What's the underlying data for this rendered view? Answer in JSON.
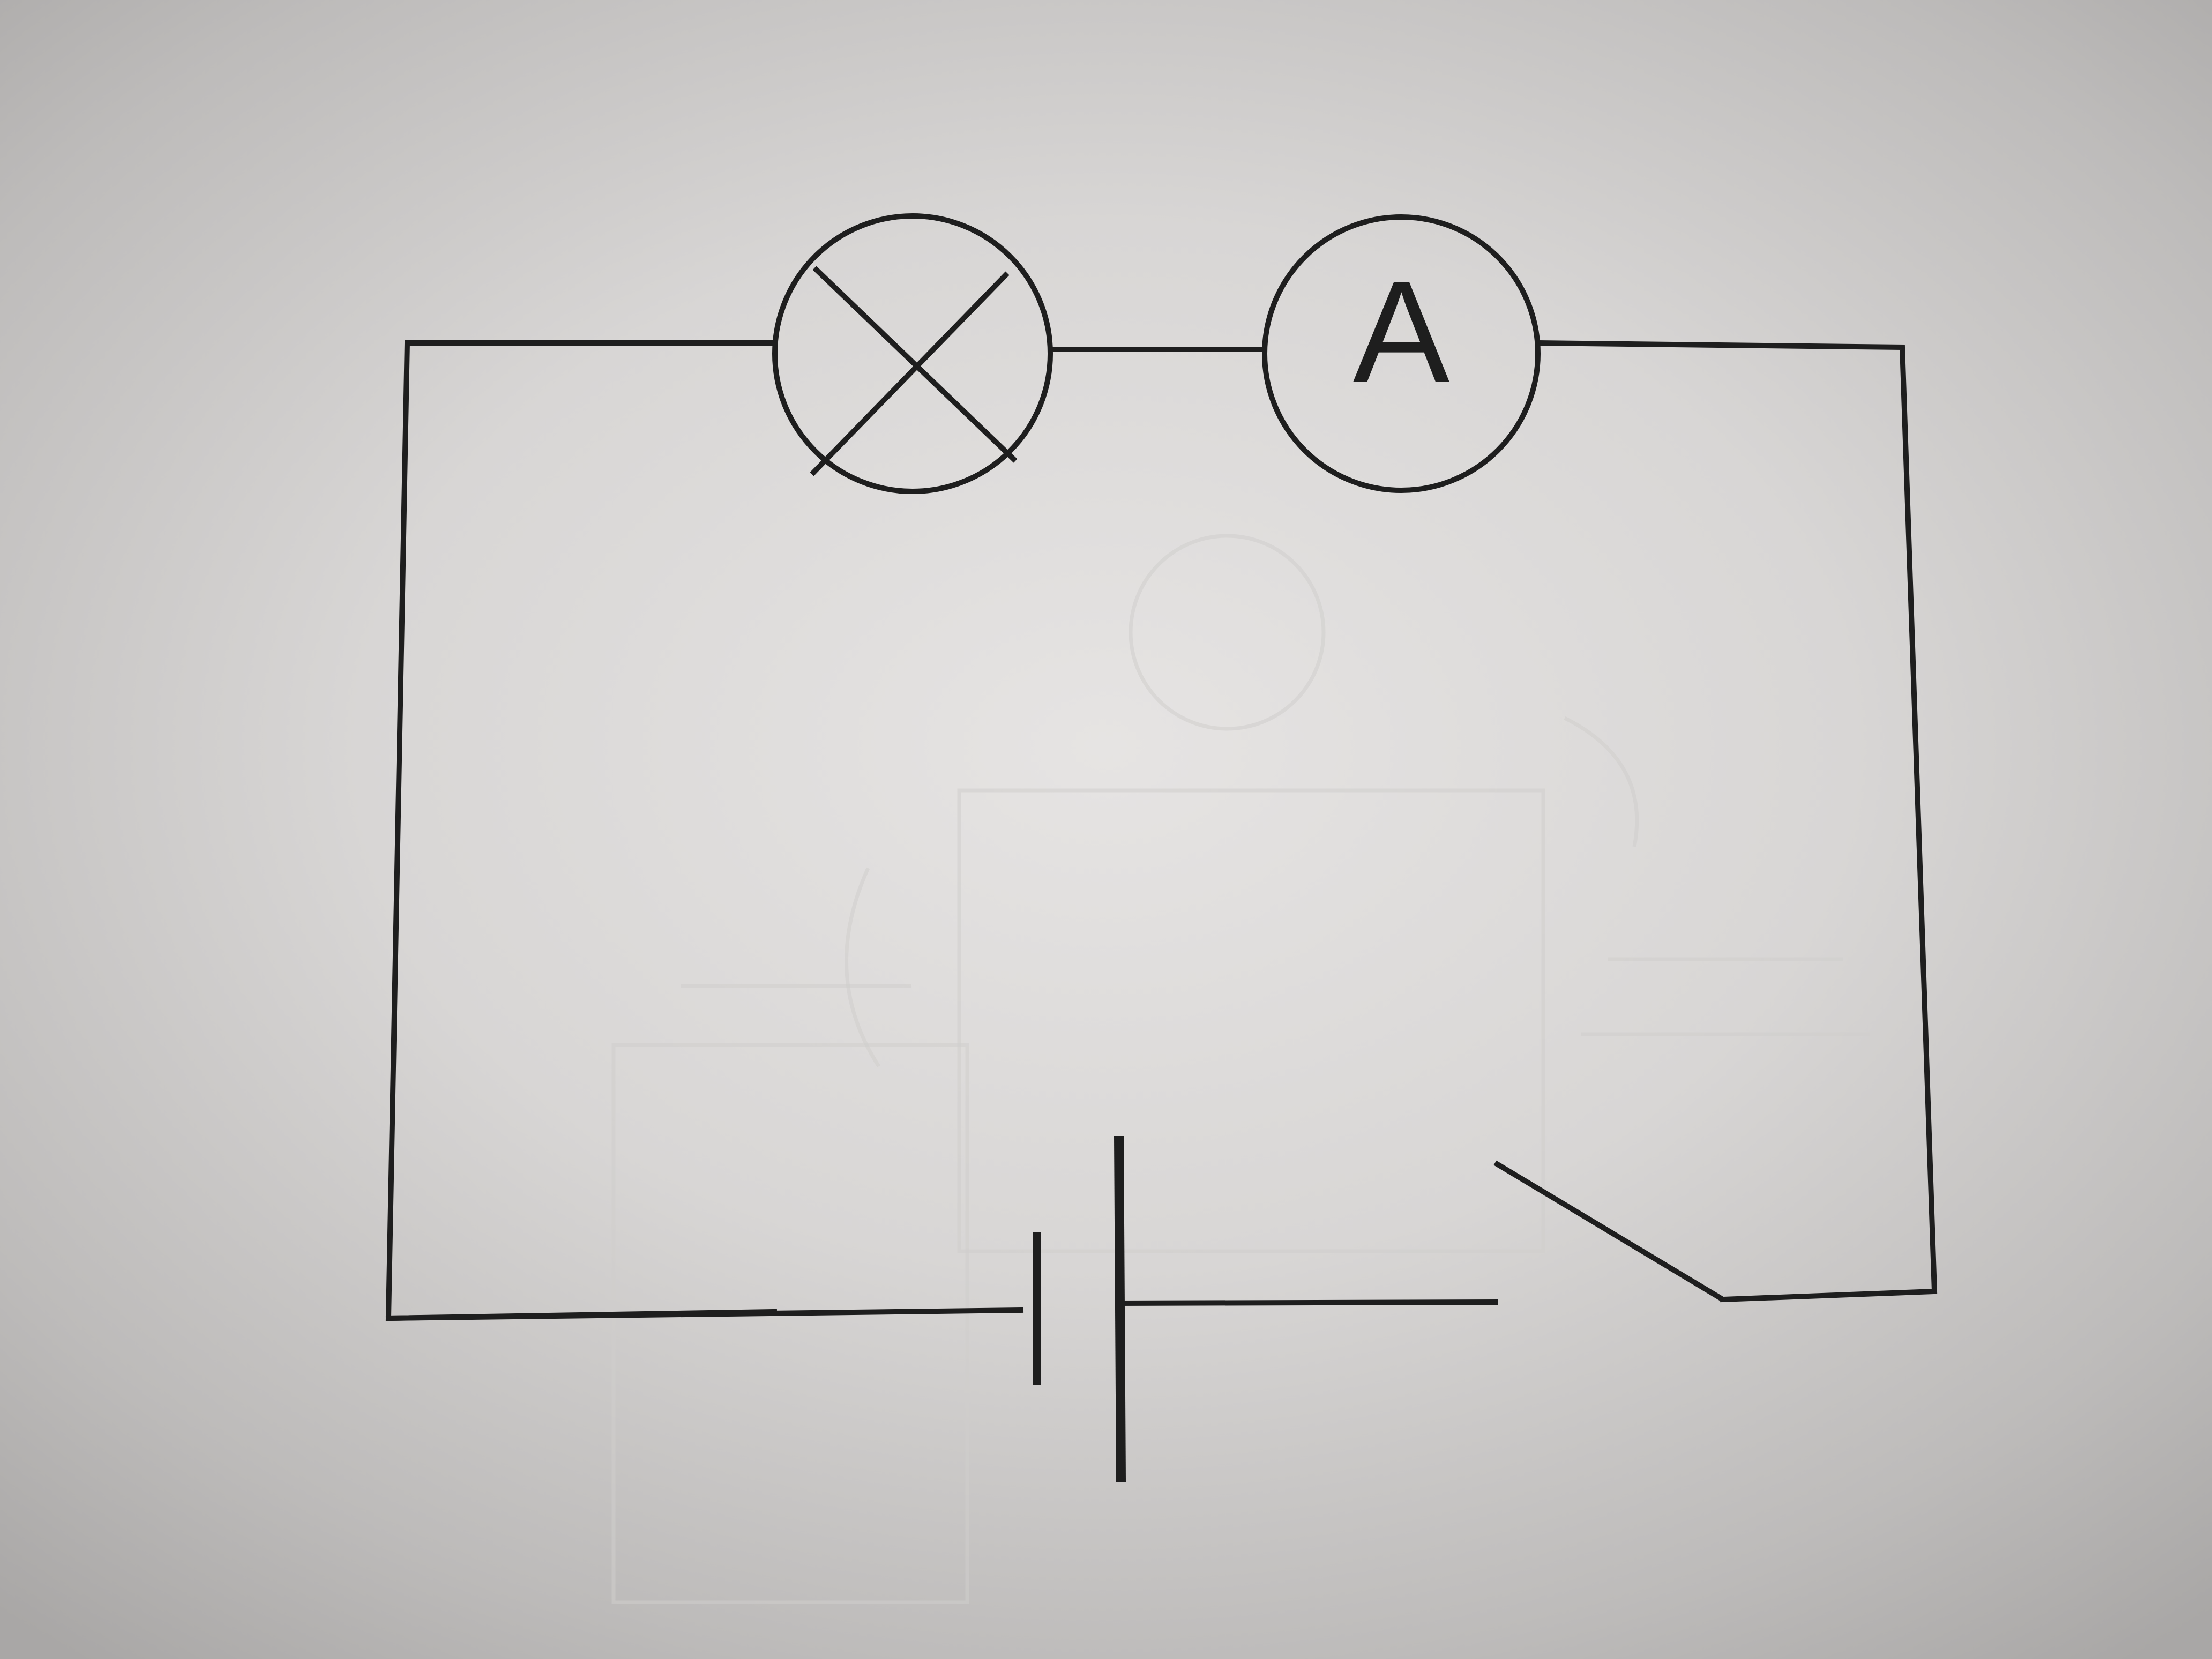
{
  "diagram": {
    "ammeter_label": "A",
    "ink_color": "#1e1e1e",
    "paper_color": "#e6e4e3",
    "components": [
      {
        "name": "lamp",
        "symbol": "circle-with-cross"
      },
      {
        "name": "ammeter",
        "symbol": "circle-with-letter"
      },
      {
        "name": "switch",
        "state": "open"
      },
      {
        "name": "cell",
        "symbol": "long-and-short-plates"
      }
    ]
  }
}
